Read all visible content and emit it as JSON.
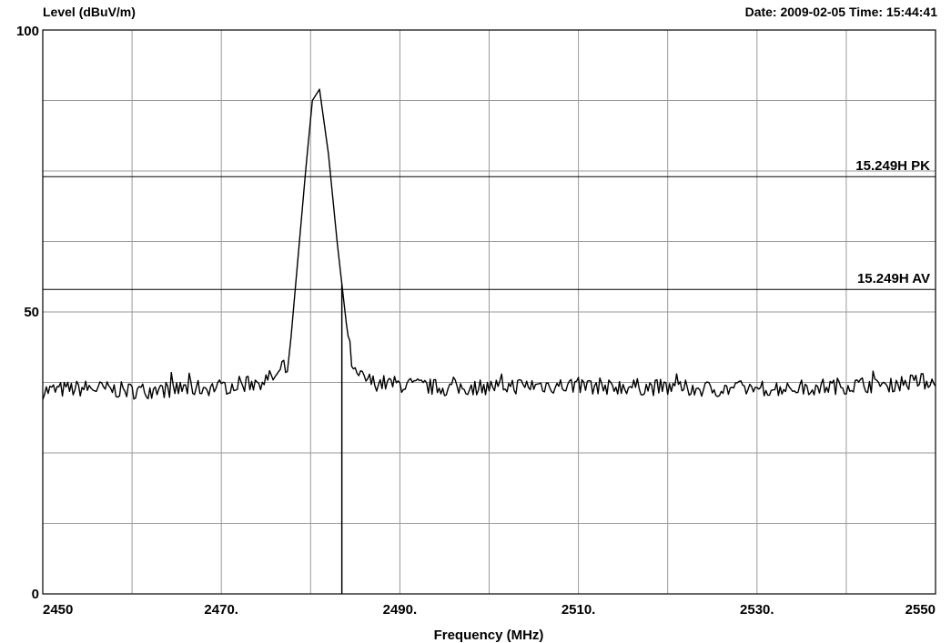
{
  "header": {
    "ylabel": "Level (dBuV/m)",
    "datetime": "Date: 2009-02-05  Time: 15:44:41"
  },
  "chart_data": {
    "type": "line",
    "xlabel": "Frequency (MHz)",
    "ylabel": "Level (dBuV/m)",
    "xlim": [
      2450,
      2550
    ],
    "ylim": [
      0,
      100
    ],
    "x_tick_labels": [
      {
        "value": 2450,
        "label": "2450"
      },
      {
        "value": 2470,
        "label": "2470."
      },
      {
        "value": 2490,
        "label": "2490."
      },
      {
        "value": 2510,
        "label": "2510."
      },
      {
        "value": 2530,
        "label": "2530."
      },
      {
        "value": 2550,
        "label": "2550"
      }
    ],
    "y_tick_labels": [
      {
        "value": 100,
        "label": "100"
      },
      {
        "value": 50,
        "label": "50"
      },
      {
        "value": 0,
        "label": "0"
      }
    ],
    "grid": true,
    "x_grid_step": 10,
    "y_grid_step": 12.5,
    "limit_lines": [
      {
        "name": "15.249H PK",
        "value": 74
      },
      {
        "name": "15.249H AV",
        "value": 54
      }
    ],
    "marker": {
      "x": 2483.5
    },
    "noise_floor": {
      "mean": 36.5,
      "jitter": 1.5,
      "step_mhz": 0.2
    },
    "series": [
      {
        "x": [
          2450,
          2455,
          2460,
          2465,
          2470,
          2474,
          2476,
          2477.5,
          2478.5,
          2479.5,
          2480.2,
          2481.0,
          2482.0,
          2483.0,
          2484.0,
          2484.8,
          2487,
          2495,
          2505,
          2515,
          2525,
          2535,
          2545,
          2550
        ],
        "y": [
          36.0,
          36.5,
          36.0,
          36.3,
          36.7,
          37.5,
          38.5,
          40,
          58,
          76,
          87.5,
          89.5,
          78,
          62,
          48,
          39,
          37.5,
          36.5,
          37.0,
          36.8,
          36.3,
          36.6,
          37.3,
          37.8
        ]
      }
    ]
  }
}
